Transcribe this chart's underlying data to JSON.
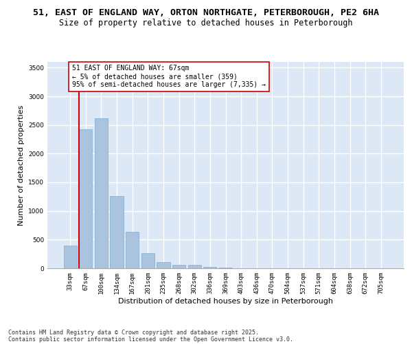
{
  "title_line1": "51, EAST OF ENGLAND WAY, ORTON NORTHGATE, PETERBOROUGH, PE2 6HA",
  "title_line2": "Size of property relative to detached houses in Peterborough",
  "xlabel": "Distribution of detached houses by size in Peterborough",
  "ylabel": "Number of detached properties",
  "annotation_line1": "51 EAST OF ENGLAND WAY: 67sqm",
  "annotation_line2": "← 5% of detached houses are smaller (359)",
  "annotation_line3": "95% of semi-detached houses are larger (7,335) →",
  "categories": [
    "33sqm",
    "67sqm",
    "100sqm",
    "134sqm",
    "167sqm",
    "201sqm",
    "235sqm",
    "268sqm",
    "302sqm",
    "336sqm",
    "369sqm",
    "403sqm",
    "436sqm",
    "470sqm",
    "504sqm",
    "537sqm",
    "571sqm",
    "604sqm",
    "638sqm",
    "672sqm",
    "705sqm"
  ],
  "values": [
    400,
    2430,
    2620,
    1260,
    640,
    270,
    105,
    55,
    55,
    25,
    10,
    0,
    0,
    0,
    0,
    0,
    0,
    0,
    0,
    0,
    0
  ],
  "bar_color": "#aac4e0",
  "bar_edge_color": "#7aaad0",
  "highlight_bar_index": 1,
  "highlight_edge_color": "#cc0000",
  "annotation_box_edge_color": "#cc0000",
  "annotation_box_face_color": "#ffffff",
  "background_color": "#dce8f5",
  "grid_color": "#ffffff",
  "ylim": [
    0,
    3600
  ],
  "yticks": [
    0,
    500,
    1000,
    1500,
    2000,
    2500,
    3000,
    3500
  ],
  "footer_line1": "Contains HM Land Registry data © Crown copyright and database right 2025.",
  "footer_line2": "Contains public sector information licensed under the Open Government Licence v3.0.",
  "title_fontsize": 9.5,
  "subtitle_fontsize": 8.5,
  "axis_label_fontsize": 8,
  "tick_fontsize": 6.5,
  "annotation_fontsize": 7,
  "footer_fontsize": 6
}
